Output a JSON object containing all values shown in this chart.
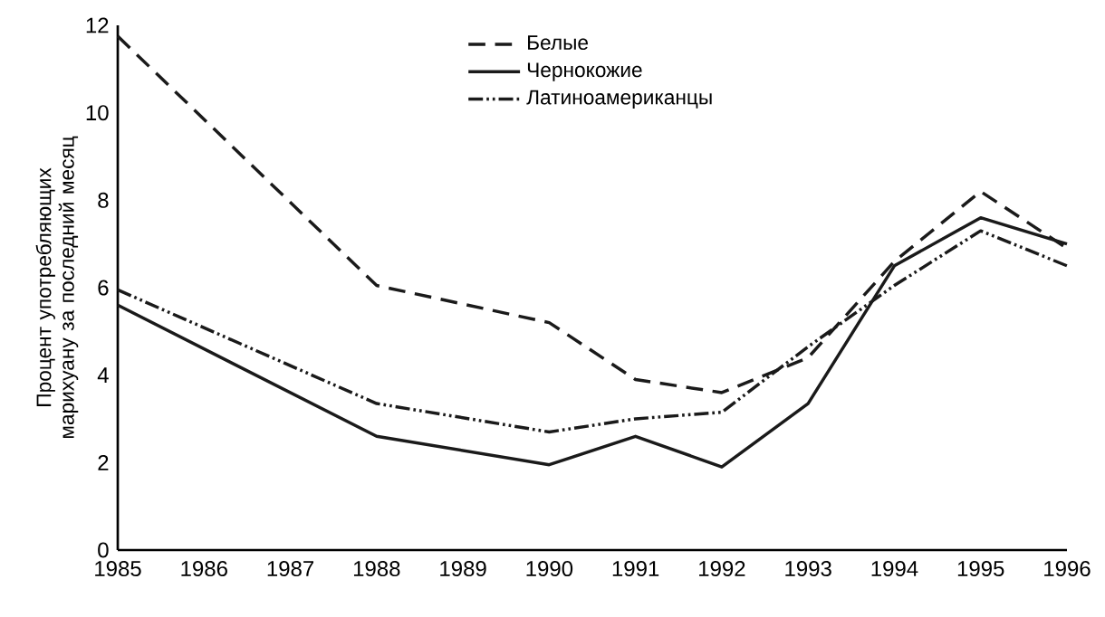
{
  "chart_data": {
    "type": "line",
    "ylabel": "Процент употребляющих марихуану за последний месяц",
    "x": [
      1985,
      1988,
      1990,
      1991,
      1992,
      1993,
      1994,
      1995,
      1996
    ],
    "series": [
      {
        "name": "Белые",
        "color": "#1a1a1a",
        "line_style": "dashed",
        "values": [
          11.75,
          6.05,
          5.2,
          3.9,
          3.6,
          4.4,
          6.6,
          8.2,
          6.9
        ]
      },
      {
        "name": "Чернокожие",
        "color": "#1a1a1a",
        "line_style": "solid",
        "values": [
          5.6,
          2.6,
          1.95,
          2.6,
          1.9,
          3.35,
          6.5,
          7.6,
          7.0
        ]
      },
      {
        "name": "Латиноамериканцы",
        "color": "#1a1a1a",
        "line_style": "dashdotdotted",
        "values": [
          5.95,
          3.35,
          2.7,
          3.0,
          3.15,
          4.65,
          6.05,
          7.3,
          6.5
        ]
      }
    ],
    "xlim": [
      1985,
      1996
    ],
    "xticks": [
      1985,
      1986,
      1987,
      1988,
      1989,
      1990,
      1991,
      1992,
      1993,
      1994,
      1995,
      1996
    ],
    "ylim": [
      0,
      12
    ],
    "yticks": [
      0,
      2,
      4,
      6,
      8,
      10,
      12
    ],
    "grid": false,
    "legend": "top",
    "marker": "none"
  }
}
